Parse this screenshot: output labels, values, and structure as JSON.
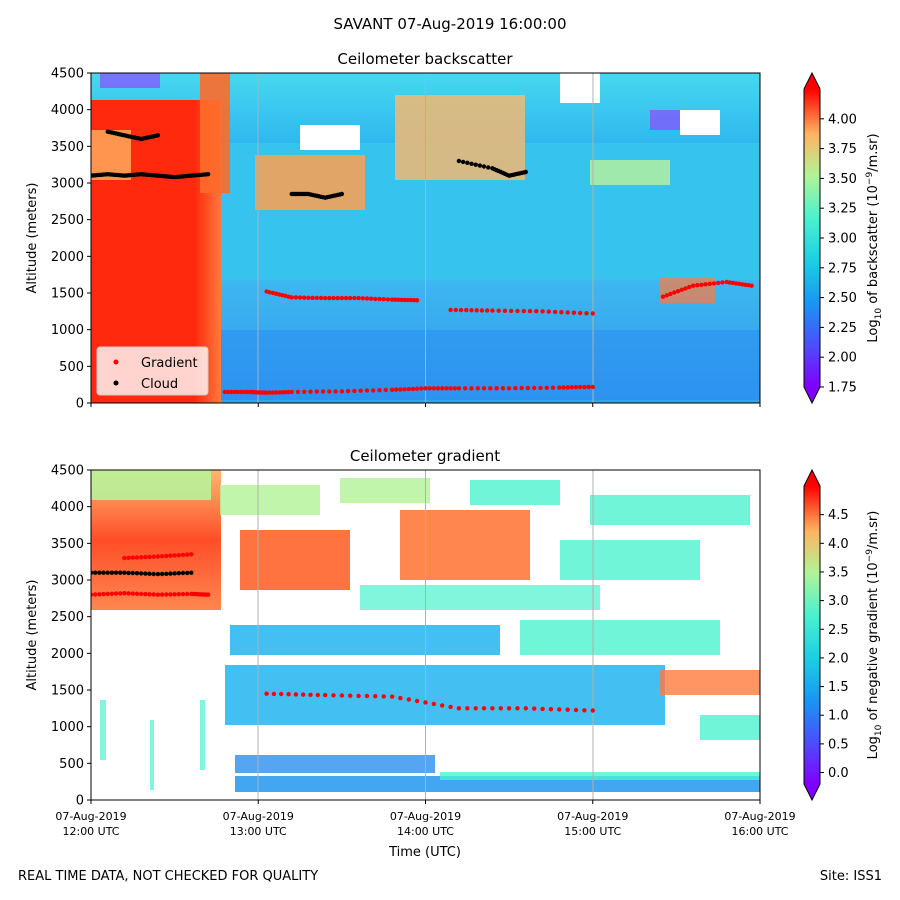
{
  "figure": {
    "title": "SAVANT 07-Aug-2019 16:00:00",
    "footer_left": "REAL TIME DATA, NOT CHECKED FOR QUALITY",
    "footer_right": "Site: ISS1"
  },
  "colors": {
    "gradient_marker": "#ff0000",
    "cloud_marker": "#000000",
    "colormap": "rainbow"
  },
  "chart_data": [
    {
      "type": "heatmap",
      "title": "Ceilometer backscatter",
      "ylabel": "Altitude (meters)",
      "xlabel": "",
      "xlim": [
        "07-Aug-2019 12:00 UTC",
        "07-Aug-2019 16:00 UTC"
      ],
      "ylim": [
        0,
        4500
      ],
      "yticks": [
        0,
        500,
        1000,
        1500,
        2000,
        2500,
        3000,
        3500,
        4000,
        4500
      ],
      "grid": "vertical lines at hour ticks",
      "colorbar": {
        "label_prefix": "Log",
        "label_sub": "10",
        "label_rest": " of backscatter (10",
        "label_sup": "−9",
        "label_end": "/m.sr)",
        "range": [
          1.75,
          4.25
        ],
        "ticks": [
          "4.00",
          "3.75",
          "3.50",
          "3.25",
          "3.00",
          "2.75",
          "2.50",
          "2.25",
          "2.00",
          "1.75"
        ],
        "tick_values": [
          4.0,
          3.75,
          3.5,
          3.25,
          3.0,
          2.75,
          2.5,
          2.25,
          2.0,
          1.75
        ]
      },
      "legend": {
        "placement": "lower-left",
        "entries": [
          {
            "name": "Gradient",
            "color": "#ff0000"
          },
          {
            "name": "Cloud",
            "color": "#000000"
          }
        ]
      },
      "series": [
        {
          "name": "Gradient",
          "hours": [
            12.8,
            12.95,
            13.05,
            13.2,
            13.5,
            13.8,
            14.0,
            14.2,
            14.5,
            14.8,
            15.0
          ],
          "altitude": [
            150,
            150,
            140,
            150,
            160,
            180,
            200,
            200,
            200,
            210,
            220
          ]
        },
        {
          "name": "Gradient",
          "hours": [
            13.05,
            13.2,
            13.4,
            13.6,
            13.8,
            13.95
          ],
          "altitude": [
            1520,
            1440,
            1430,
            1430,
            1410,
            1400
          ]
        },
        {
          "name": "Gradient",
          "hours": [
            14.15,
            14.4,
            14.7,
            15.0
          ],
          "altitude": [
            1270,
            1260,
            1250,
            1220
          ]
        },
        {
          "name": "Gradient",
          "hours": [
            15.42,
            15.6,
            15.8,
            15.95
          ],
          "altitude": [
            1450,
            1600,
            1650,
            1600
          ]
        },
        {
          "name": "Cloud",
          "hours": [
            12.0,
            12.1,
            12.2,
            12.3,
            12.4,
            12.5,
            12.6,
            12.7
          ],
          "altitude": [
            3100,
            3120,
            3100,
            3120,
            3100,
            3080,
            3100,
            3120
          ]
        },
        {
          "name": "Cloud",
          "hours": [
            12.1,
            12.2,
            12.3,
            12.4
          ],
          "altitude": [
            3700,
            3650,
            3600,
            3650
          ]
        },
        {
          "name": "Cloud",
          "hours": [
            13.2,
            13.3,
            13.4,
            13.5
          ],
          "altitude": [
            2850,
            2850,
            2800,
            2850
          ]
        },
        {
          "name": "Cloud",
          "hours": [
            14.2,
            14.4,
            14.5,
            14.6
          ],
          "altitude": [
            3300,
            3200,
            3100,
            3150
          ]
        }
      ]
    },
    {
      "type": "heatmap",
      "title": "Ceilometer gradient",
      "ylabel": "Altitude (meters)",
      "xlabel": "Time (UTC)",
      "xlim": [
        "07-Aug-2019 12:00 UTC",
        "07-Aug-2019 16:00 UTC"
      ],
      "ylim": [
        0,
        4500
      ],
      "yticks": [
        0,
        500,
        1000,
        1500,
        2000,
        2500,
        3000,
        3500,
        4000,
        4500
      ],
      "xticks": [
        {
          "date": "07-Aug-2019",
          "time": "12:00 UTC"
        },
        {
          "date": "07-Aug-2019",
          "time": "13:00 UTC"
        },
        {
          "date": "07-Aug-2019",
          "time": "14:00 UTC"
        },
        {
          "date": "07-Aug-2019",
          "time": "15:00 UTC"
        },
        {
          "date": "07-Aug-2019",
          "time": "16:00 UTC"
        }
      ],
      "grid": "vertical lines at hour ticks",
      "colorbar": {
        "label_prefix": "Log",
        "label_sub": "10",
        "label_rest": " of negative gradient (10",
        "label_sup": "−9",
        "label_end": "/m.sr)",
        "range": [
          -0.2,
          5.0
        ],
        "ticks": [
          "4.5",
          "4.0",
          "3.5",
          "3.0",
          "2.5",
          "2.0",
          "1.5",
          "1.0",
          "0.5",
          "0.0"
        ],
        "tick_values": [
          4.5,
          4.0,
          3.5,
          3.0,
          2.5,
          2.0,
          1.5,
          1.0,
          0.5,
          0.0
        ]
      },
      "series": [
        {
          "name": "Gradient",
          "hours": [
            12.0,
            12.2,
            12.4,
            12.6,
            12.7
          ],
          "altitude": [
            2800,
            2820,
            2800,
            2810,
            2800
          ]
        },
        {
          "name": "Gradient",
          "hours": [
            12.2,
            12.4,
            12.6
          ],
          "altitude": [
            3300,
            3320,
            3350
          ]
        },
        {
          "name": "Gradient",
          "hours": [
            13.05,
            13.4,
            13.8,
            14.2,
            14.6,
            15.0
          ],
          "altitude": [
            1450,
            1430,
            1410,
            1250,
            1250,
            1220
          ]
        },
        {
          "name": "Cloud",
          "hours": [
            12.0,
            12.2,
            12.4,
            12.6
          ],
          "altitude": [
            3100,
            3100,
            3080,
            3100
          ]
        }
      ]
    }
  ]
}
